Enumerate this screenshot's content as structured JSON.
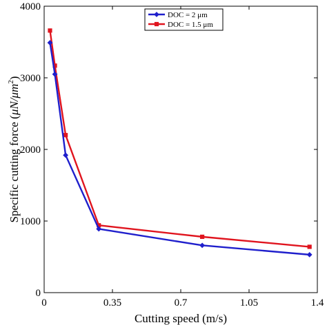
{
  "chart_data": {
    "type": "line",
    "title": "",
    "xlabel": "Cutting speed (m/s)",
    "ylabel_main": "Specific cutting force (",
    "ylabel_unit": "μN/μm",
    "ylabel_sup": "2",
    "ylabel_close": ")",
    "xlim": [
      0,
      1.4
    ],
    "ylim": [
      0,
      4000
    ],
    "xticks": [
      0,
      0.35,
      0.7,
      1.05,
      1.4
    ],
    "xtick_labels": [
      "0",
      "0.35",
      "0.7",
      "1.05",
      "1.4"
    ],
    "yticks": [
      0,
      1000,
      2000,
      3000,
      4000
    ],
    "ytick_labels": [
      "0",
      "1000",
      "2000",
      "3000",
      "4000"
    ],
    "grid": false,
    "legend_position": "top-right",
    "series": [
      {
        "name": "DOC = 2 μm",
        "color": "#1f1fcc",
        "marker": "diamond",
        "x": [
          0.03,
          0.055,
          0.11,
          0.28,
          0.81,
          1.36
        ],
        "y": [
          3490,
          3050,
          1920,
          890,
          660,
          530
        ]
      },
      {
        "name": "DOC = 1.5 μm",
        "color": "#e0141e",
        "marker": "square",
        "x": [
          0.03,
          0.055,
          0.11,
          0.28,
          0.81,
          1.36
        ],
        "y": [
          3660,
          3170,
          2200,
          940,
          780,
          640
        ]
      }
    ]
  }
}
